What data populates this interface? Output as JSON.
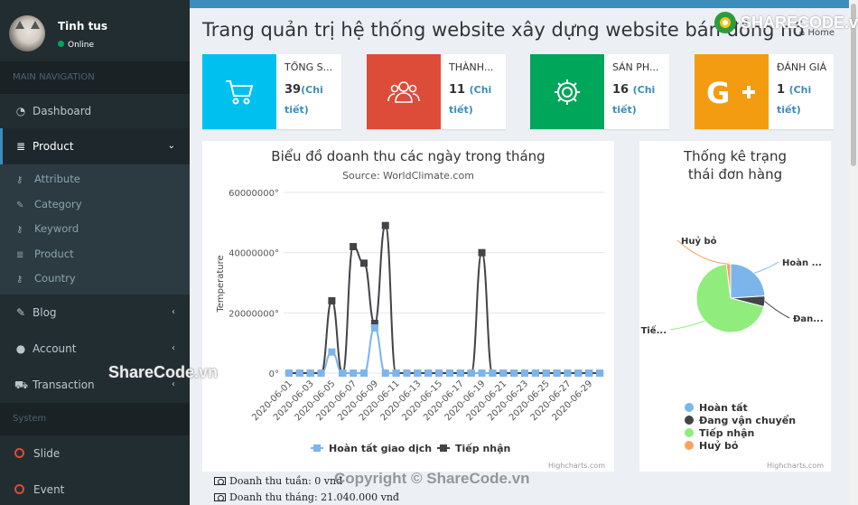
{
  "user": {
    "name": "Tinh tus",
    "status": "Online"
  },
  "sidebar": {
    "main_nav_label": "MAIN NAVIGATION",
    "items": [
      {
        "label": "Dashboard",
        "icon": "dashboard-icon"
      },
      {
        "label": "Product",
        "icon": "database-icon"
      },
      {
        "label": "Blog",
        "icon": "edit-icon"
      },
      {
        "label": "Account",
        "icon": "user-icon"
      },
      {
        "label": "Transaction",
        "icon": "cart-icon"
      }
    ],
    "product_sub": [
      {
        "label": "Attribute",
        "icon": "key-icon"
      },
      {
        "label": "Category",
        "icon": "edit-icon"
      },
      {
        "label": "Keyword",
        "icon": "key-icon"
      },
      {
        "label": "Product",
        "icon": "database-icon"
      },
      {
        "label": "Country",
        "icon": "key-icon"
      }
    ],
    "system_label": "System",
    "system_items": [
      {
        "label": "Slide",
        "icon": "circle-icon"
      },
      {
        "label": "Event",
        "icon": "circle-icon"
      }
    ]
  },
  "page": {
    "title": "Trang quản trị hệ thống website xây dựng website bán đồng hồ",
    "breadcrumb": "Home"
  },
  "infoboxes": [
    {
      "label": "TỔNG S...",
      "value": "39",
      "link": "(Chi tiết)",
      "color": "#00c0ef",
      "icon": "cart-icon"
    },
    {
      "label": "THÀNH...",
      "value": "11",
      "link": "(Chi tiết)",
      "color": "#dd4b39",
      "icon": "users-icon"
    },
    {
      "label": "SẢN PH...",
      "value": "16",
      "link": "(Chi tiết)",
      "color": "#00a65a",
      "icon": "gear-icon"
    },
    {
      "label": "ĐÁNH GIÁ",
      "value": "1",
      "link": "(Chi tiết)",
      "color": "#f39c12",
      "icon": "google-plus-icon"
    }
  ],
  "chart_data": [
    {
      "type": "line",
      "title": "Biểu đồ doanh thu các ngày trong tháng",
      "subtitle": "Source: WorldClimate.com",
      "ylabel": "Temperature",
      "ylim": [
        0,
        60000000
      ],
      "yticks": [
        "0°",
        "20000000°",
        "40000000°",
        "60000000°"
      ],
      "x": [
        "2020-06-01",
        "2020-06-02",
        "2020-06-03",
        "2020-06-04",
        "2020-06-05",
        "2020-06-06",
        "2020-06-07",
        "2020-06-08",
        "2020-06-09",
        "2020-06-10",
        "2020-06-11",
        "2020-06-12",
        "2020-06-13",
        "2020-06-14",
        "2020-06-15",
        "2020-06-16",
        "2020-06-17",
        "2020-06-18",
        "2020-06-19",
        "2020-06-20",
        "2020-06-21",
        "2020-06-22",
        "2020-06-23",
        "2020-06-24",
        "2020-06-25",
        "2020-06-26",
        "2020-06-27",
        "2020-06-28",
        "2020-06-29",
        "2020-06-30"
      ],
      "xtick_labels": [
        "2020-06-01",
        "2020-06-03",
        "2020-06-05",
        "2020-06-07",
        "2020-06-09",
        "2020-06-11",
        "2020-06-13",
        "2020-06-15",
        "2020-06-17",
        "2020-06-19",
        "2020-06-21",
        "2020-06-23",
        "2020-06-25",
        "2020-06-27",
        "2020-06-29"
      ],
      "series": [
        {
          "name": "Hoàn tất giao dịch",
          "color": "#7cb5ec",
          "values": [
            0,
            0,
            0,
            0,
            7000000,
            0,
            0,
            0,
            15000000,
            0,
            0,
            0,
            0,
            0,
            0,
            0,
            0,
            0,
            0,
            0,
            0,
            0,
            0,
            0,
            0,
            0,
            0,
            0,
            0,
            0
          ]
        },
        {
          "name": "Tiếp nhận",
          "color": "#434348",
          "values": [
            0,
            0,
            0,
            0,
            24000000,
            0,
            42000000,
            36500000,
            16500000,
            49000000,
            0,
            0,
            0,
            0,
            0,
            0,
            0,
            0,
            40000000,
            0,
            0,
            0,
            0,
            0,
            0,
            0,
            0,
            0,
            0,
            0
          ]
        }
      ],
      "credits": "Highcharts.com"
    },
    {
      "type": "pie",
      "title": "Thống kê trạng thái đơn hàng",
      "slices": [
        {
          "name": "Hoàn tất",
          "short": "Hoàn ...",
          "value": 24,
          "color": "#7cb5ec"
        },
        {
          "name": "Đang vận chuyển",
          "short": "Đan...",
          "value": 5,
          "color": "#434348"
        },
        {
          "name": "Tiếp nhận",
          "short": "Tiế...",
          "value": 69,
          "color": "#90ed7d"
        },
        {
          "name": "Huỷ bỏ",
          "short": "Huỷ bỏ",
          "value": 2,
          "color": "#f7a35c"
        }
      ],
      "credits": "Highcharts.com"
    }
  ],
  "revenue": {
    "week": "Doanh thu tuần: 0 vnđ",
    "month": "Doanh thu tháng: 21.040.000 vnđ"
  },
  "watermarks": {
    "logo": "SHARECODE.vn",
    "mid": "ShareCode.vn",
    "copyright": "Copyright © ShareCode.vn"
  }
}
